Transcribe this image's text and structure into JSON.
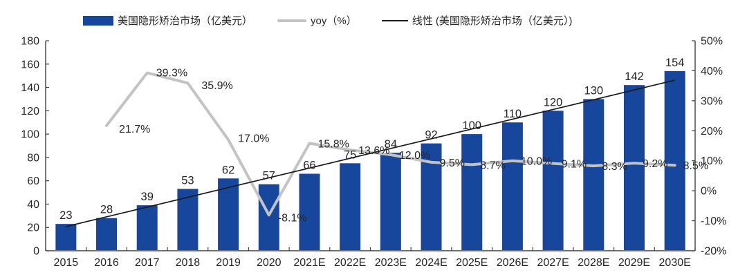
{
  "chart_data": {
    "type": "bar",
    "title": "",
    "categories": [
      "2015",
      "2016",
      "2017",
      "2018",
      "2019",
      "2020",
      "2021E",
      "2022E",
      "2023E",
      "2024E",
      "2025E",
      "2026E",
      "2027E",
      "2028E",
      "2029E",
      "2030E"
    ],
    "series": [
      {
        "name": "美国隐形矫治市场（亿美元）",
        "kind": "bar",
        "axis": "left",
        "color": "#17479C",
        "values": [
          23,
          28,
          39,
          53,
          62,
          57,
          66,
          75,
          84,
          92,
          100,
          110,
          120,
          130,
          142,
          154
        ],
        "labels": [
          "23",
          "28",
          "39",
          "53",
          "62",
          "57",
          "66",
          "75",
          "84",
          "92",
          "100",
          "110",
          "120",
          "130",
          "142",
          "154"
        ]
      },
      {
        "name": "yoy（%）",
        "kind": "line",
        "axis": "right",
        "color": "#C3C3C3",
        "values": [
          null,
          21.7,
          39.3,
          35.9,
          17.0,
          -8.1,
          15.8,
          13.6,
          12.0,
          9.5,
          8.7,
          10.0,
          9.1,
          8.3,
          9.2,
          8.5
        ],
        "labels": [
          null,
          "21.7%",
          "39.3%",
          "35.9%",
          "17.0%",
          "-8.1%",
          "15.8%",
          "13.6%",
          "12.0%",
          "9.5%",
          "8.7%",
          "10.0%",
          "9.1%",
          "8.3%",
          "9.2%",
          "8.5%"
        ]
      },
      {
        "name": "线性 (美国隐形矫治市场（亿美元）)",
        "kind": "trendline",
        "axis": "left",
        "color": "#1a1a1a",
        "start_value": 20.7,
        "end_value": 146.2
      }
    ],
    "left_axis": {
      "min": 0,
      "max": 180,
      "step": 20,
      "ticks": [
        "0",
        "20",
        "40",
        "60",
        "80",
        "100",
        "120",
        "140",
        "160",
        "180"
      ]
    },
    "right_axis": {
      "min": -20,
      "max": 50,
      "step": 10,
      "ticks": [
        "-20%",
        "-10%",
        "0%",
        "10%",
        "20%",
        "30%",
        "40%",
        "50%"
      ]
    },
    "grid": false,
    "legend_position": "top",
    "text_color": "#262626",
    "axis_color": "#404040"
  }
}
